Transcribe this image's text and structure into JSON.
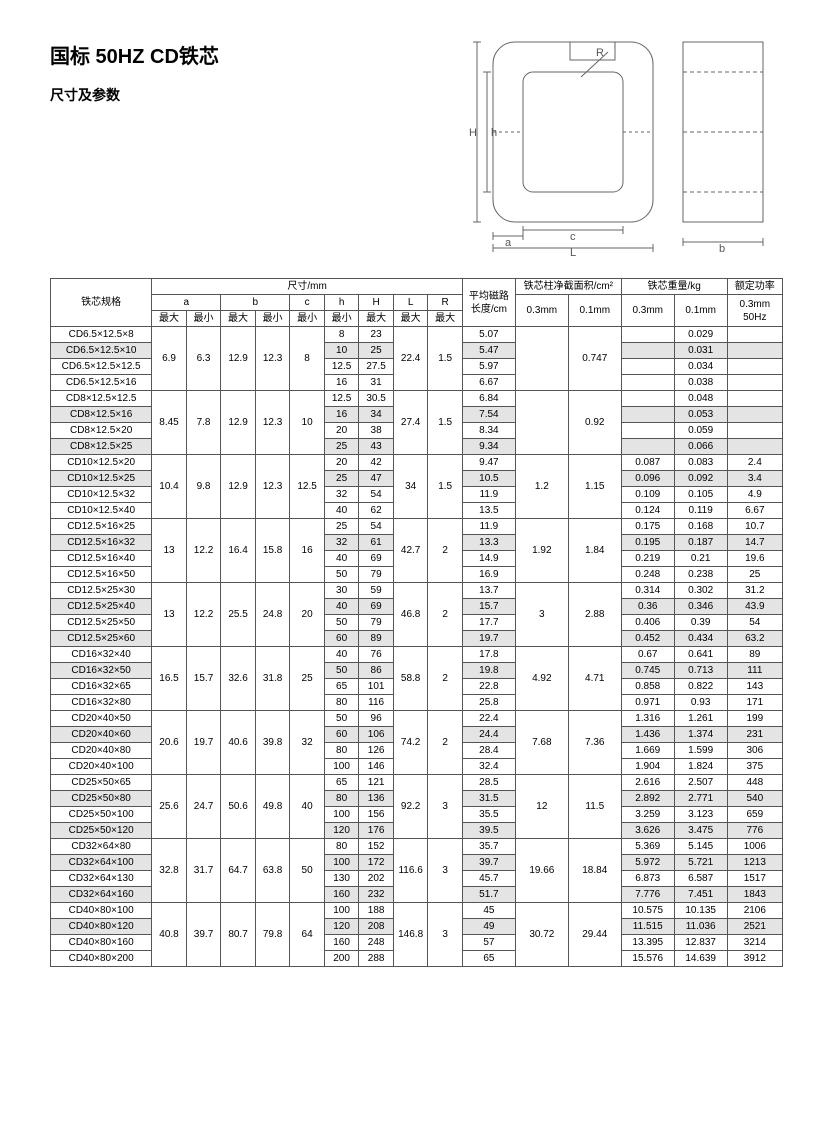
{
  "title": "国标 50HZ CD铁芯",
  "subtitle": "尺寸及参数",
  "header": {
    "spec": "铁芯规格",
    "dim": "尺寸/mm",
    "a": "a",
    "b": "b",
    "c": "c",
    "h": "h",
    "H": "H",
    "L": "L",
    "R": "R",
    "max": "最大",
    "min": "最小",
    "avgPath": "平均磁路长度/cm",
    "crossArea": "铁芯柱净截面积/cm²",
    "weight": "铁芯重量/kg",
    "rated": "额定功率",
    "p03": "0.3mm",
    "p01": "0.1mm",
    "p03_50": "0.3mm 50Hz"
  },
  "groups": [
    {
      "a_max": "6.9",
      "a_min": "6.3",
      "b_max": "12.9",
      "b_min": "12.3",
      "c_min": "8",
      "L_max": "22.4",
      "R_max": "1.5",
      "cs03": "",
      "cs01": "0.747",
      "rows": [
        {
          "spec": "CD6.5×12.5×8",
          "h": "8",
          "H": "23",
          "path": "5.07",
          "w03": "",
          "w01": "0.029",
          "pw": ""
        },
        {
          "spec": "CD6.5×12.5×10",
          "h": "10",
          "H": "25",
          "path": "5.47",
          "w03": "",
          "w01": "0.031",
          "pw": "",
          "hl": true
        },
        {
          "spec": "CD6.5×12.5×12.5",
          "h": "12.5",
          "H": "27.5",
          "path": "5.97",
          "w03": "",
          "w01": "0.034",
          "pw": ""
        },
        {
          "spec": "CD6.5×12.5×16",
          "h": "16",
          "H": "31",
          "path": "6.67",
          "w03": "",
          "w01": "0.038",
          "pw": ""
        }
      ]
    },
    {
      "a_max": "8.45",
      "a_min": "7.8",
      "b_max": "12.9",
      "b_min": "12.3",
      "c_min": "10",
      "L_max": "27.4",
      "R_max": "1.5",
      "cs03": "",
      "cs01": "0.92",
      "rows": [
        {
          "spec": "CD8×12.5×12.5",
          "h": "12.5",
          "H": "30.5",
          "path": "6.84",
          "w03": "",
          "w01": "0.048",
          "pw": ""
        },
        {
          "spec": "CD8×12.5×16",
          "h": "16",
          "H": "34",
          "path": "7.54",
          "w03": "",
          "w01": "0.053",
          "pw": "",
          "hl": true
        },
        {
          "spec": "CD8×12.5×20",
          "h": "20",
          "H": "38",
          "path": "8.34",
          "w03": "",
          "w01": "0.059",
          "pw": ""
        },
        {
          "spec": "CD8×12.5×25",
          "h": "25",
          "H": "43",
          "path": "9.34",
          "w03": "",
          "w01": "0.066",
          "pw": "",
          "hl": true
        }
      ]
    },
    {
      "a_max": "10.4",
      "a_min": "9.8",
      "b_max": "12.9",
      "b_min": "12.3",
      "c_min": "12.5",
      "L_max": "34",
      "R_max": "1.5",
      "cs03": "1.2",
      "cs01": "1.15",
      "rows": [
        {
          "spec": "CD10×12.5×20",
          "h": "20",
          "H": "42",
          "path": "9.47",
          "w03": "0.087",
          "w01": "0.083",
          "pw": "2.4"
        },
        {
          "spec": "CD10×12.5×25",
          "h": "25",
          "H": "47",
          "path": "10.5",
          "w03": "0.096",
          "w01": "0.092",
          "pw": "3.4",
          "hl": true
        },
        {
          "spec": "CD10×12.5×32",
          "h": "32",
          "H": "54",
          "path": "11.9",
          "w03": "0.109",
          "w01": "0.105",
          "pw": "4.9"
        },
        {
          "spec": "CD10×12.5×40",
          "h": "40",
          "H": "62",
          "path": "13.5",
          "w03": "0.124",
          "w01": "0.119",
          "pw": "6.67"
        }
      ]
    },
    {
      "a_max": "13",
      "a_min": "12.2",
      "b_max": "16.4",
      "b_min": "15.8",
      "c_min": "16",
      "L_max": "42.7",
      "R_max": "2",
      "cs03": "1.92",
      "cs01": "1.84",
      "rows": [
        {
          "spec": "CD12.5×16×25",
          "h": "25",
          "H": "54",
          "path": "11.9",
          "w03": "0.175",
          "w01": "0.168",
          "pw": "10.7"
        },
        {
          "spec": "CD12.5×16×32",
          "h": "32",
          "H": "61",
          "path": "13.3",
          "w03": "0.195",
          "w01": "0.187",
          "pw": "14.7",
          "hl": true
        },
        {
          "spec": "CD12.5×16×40",
          "h": "40",
          "H": "69",
          "path": "14.9",
          "w03": "0.219",
          "w01": "0.21",
          "pw": "19.6"
        },
        {
          "spec": "CD12.5×16×50",
          "h": "50",
          "H": "79",
          "path": "16.9",
          "w03": "0.248",
          "w01": "0.238",
          "pw": "25"
        }
      ]
    },
    {
      "a_max": "13",
      "a_min": "12.2",
      "b_max": "25.5",
      "b_min": "24.8",
      "c_min": "20",
      "L_max": "46.8",
      "R_max": "2",
      "cs03": "3",
      "cs01": "2.88",
      "rows": [
        {
          "spec": "CD12.5×25×30",
          "h": "30",
          "H": "59",
          "path": "13.7",
          "w03": "0.314",
          "w01": "0.302",
          "pw": "31.2"
        },
        {
          "spec": "CD12.5×25×40",
          "h": "40",
          "H": "69",
          "path": "15.7",
          "w03": "0.36",
          "w01": "0.346",
          "pw": "43.9",
          "hl": true
        },
        {
          "spec": "CD12.5×25×50",
          "h": "50",
          "H": "79",
          "path": "17.7",
          "w03": "0.406",
          "w01": "0.39",
          "pw": "54"
        },
        {
          "spec": "CD12.5×25×60",
          "h": "60",
          "H": "89",
          "path": "19.7",
          "w03": "0.452",
          "w01": "0.434",
          "pw": "63.2",
          "hl": true
        }
      ]
    },
    {
      "a_max": "16.5",
      "a_min": "15.7",
      "b_max": "32.6",
      "b_min": "31.8",
      "c_min": "25",
      "L_max": "58.8",
      "R_max": "2",
      "cs03": "4.92",
      "cs01": "4.71",
      "rows": [
        {
          "spec": "CD16×32×40",
          "h": "40",
          "H": "76",
          "path": "17.8",
          "w03": "0.67",
          "w01": "0.641",
          "pw": "89"
        },
        {
          "spec": "CD16×32×50",
          "h": "50",
          "H": "86",
          "path": "19.8",
          "w03": "0.745",
          "w01": "0.713",
          "pw": "111",
          "hl": true
        },
        {
          "spec": "CD16×32×65",
          "h": "65",
          "H": "101",
          "path": "22.8",
          "w03": "0.858",
          "w01": "0.822",
          "pw": "143"
        },
        {
          "spec": "CD16×32×80",
          "h": "80",
          "H": "116",
          "path": "25.8",
          "w03": "0.971",
          "w01": "0.93",
          "pw": "171"
        }
      ]
    },
    {
      "a_max": "20.6",
      "a_min": "19.7",
      "b_max": "40.6",
      "b_min": "39.8",
      "c_min": "32",
      "L_max": "74.2",
      "R_max": "2",
      "cs03": "7.68",
      "cs01": "7.36",
      "rows": [
        {
          "spec": "CD20×40×50",
          "h": "50",
          "H": "96",
          "path": "22.4",
          "w03": "1.316",
          "w01": "1.261",
          "pw": "199"
        },
        {
          "spec": "CD20×40×60",
          "h": "60",
          "H": "106",
          "path": "24.4",
          "w03": "1.436",
          "w01": "1.374",
          "pw": "231",
          "hl": true
        },
        {
          "spec": "CD20×40×80",
          "h": "80",
          "H": "126",
          "path": "28.4",
          "w03": "1.669",
          "w01": "1.599",
          "pw": "306"
        },
        {
          "spec": "CD20×40×100",
          "h": "100",
          "H": "146",
          "path": "32.4",
          "w03": "1.904",
          "w01": "1.824",
          "pw": "375"
        }
      ]
    },
    {
      "a_max": "25.6",
      "a_min": "24.7",
      "b_max": "50.6",
      "b_min": "49.8",
      "c_min": "40",
      "L_max": "92.2",
      "R_max": "3",
      "cs03": "12",
      "cs01": "11.5",
      "rows": [
        {
          "spec": "CD25×50×65",
          "h": "65",
          "H": "121",
          "path": "28.5",
          "w03": "2.616",
          "w01": "2.507",
          "pw": "448"
        },
        {
          "spec": "CD25×50×80",
          "h": "80",
          "H": "136",
          "path": "31.5",
          "w03": "2.892",
          "w01": "2.771",
          "pw": "540",
          "hl": true
        },
        {
          "spec": "CD25×50×100",
          "h": "100",
          "H": "156",
          "path": "35.5",
          "w03": "3.259",
          "w01": "3.123",
          "pw": "659"
        },
        {
          "spec": "CD25×50×120",
          "h": "120",
          "H": "176",
          "path": "39.5",
          "w03": "3.626",
          "w01": "3.475",
          "pw": "776",
          "hl": true
        }
      ]
    },
    {
      "a_max": "32.8",
      "a_min": "31.7",
      "b_max": "64.7",
      "b_min": "63.8",
      "c_min": "50",
      "L_max": "116.6",
      "R_max": "3",
      "cs03": "19.66",
      "cs01": "18.84",
      "rows": [
        {
          "spec": "CD32×64×80",
          "h": "80",
          "H": "152",
          "path": "35.7",
          "w03": "5.369",
          "w01": "5.145",
          "pw": "1006"
        },
        {
          "spec": "CD32×64×100",
          "h": "100",
          "H": "172",
          "path": "39.7",
          "w03": "5.972",
          "w01": "5.721",
          "pw": "1213",
          "hl": true
        },
        {
          "spec": "CD32×64×130",
          "h": "130",
          "H": "202",
          "path": "45.7",
          "w03": "6.873",
          "w01": "6.587",
          "pw": "1517"
        },
        {
          "spec": "CD32×64×160",
          "h": "160",
          "H": "232",
          "path": "51.7",
          "w03": "7.776",
          "w01": "7.451",
          "pw": "1843",
          "hl": true
        }
      ]
    },
    {
      "a_max": "40.8",
      "a_min": "39.7",
      "b_max": "80.7",
      "b_min": "79.8",
      "c_min": "64",
      "L_max": "146.8",
      "R_max": "3",
      "cs03": "30.72",
      "cs01": "29.44",
      "rows": [
        {
          "spec": "CD40×80×100",
          "h": "100",
          "H": "188",
          "path": "45",
          "w03": "10.575",
          "w01": "10.135",
          "pw": "2106"
        },
        {
          "spec": "CD40×80×120",
          "h": "120",
          "H": "208",
          "path": "49",
          "w03": "11.515",
          "w01": "11.036",
          "pw": "2521",
          "hl": true
        },
        {
          "spec": "CD40×80×160",
          "h": "160",
          "H": "248",
          "path": "57",
          "w03": "13.395",
          "w01": "12.837",
          "pw": "3214"
        },
        {
          "spec": "CD40×80×200",
          "h": "200",
          "H": "288",
          "path": "65",
          "w03": "15.576",
          "w01": "14.639",
          "pw": "3912"
        }
      ]
    }
  ],
  "diagram": {
    "stroke": "#666",
    "textColor": "#555",
    "fontSize": 11,
    "labels": {
      "R": "R",
      "H": "H",
      "h": "h",
      "a": "a",
      "c": "c",
      "L": "L",
      "b": "b"
    }
  }
}
